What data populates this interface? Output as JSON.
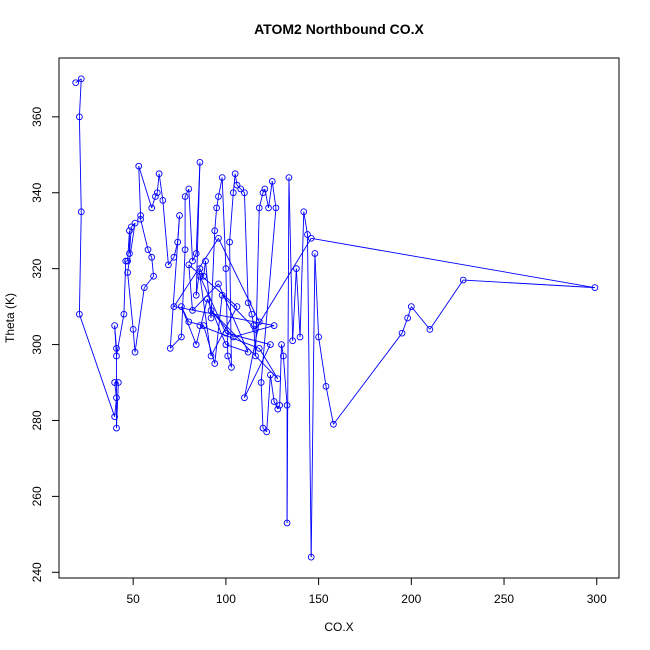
{
  "chart_data": {
    "type": "line",
    "title": "ATOM2 Northbound CO.X",
    "xlabel": "CO.X",
    "ylabel": "Theta (K)",
    "xlim": [
      10,
      312
    ],
    "ylim": [
      238.5,
      375.5
    ],
    "xticks": [
      50,
      100,
      150,
      200,
      250,
      300
    ],
    "yticks": [
      240,
      260,
      280,
      300,
      320,
      340,
      360
    ],
    "grid": false,
    "line_color": "#0000ff",
    "marker": "open-circle",
    "series": [
      {
        "points": [
          [
            19,
            369
          ],
          [
            22,
            370
          ],
          [
            21,
            360
          ],
          [
            22,
            335
          ],
          [
            21,
            308
          ],
          [
            40,
            281
          ],
          [
            41,
            286
          ],
          [
            40,
            290
          ],
          [
            42,
            290
          ],
          [
            41,
            278
          ],
          [
            41,
            299
          ],
          [
            40,
            305
          ],
          [
            41,
            297
          ],
          [
            45,
            308
          ],
          [
            46,
            322
          ],
          [
            47,
            322
          ],
          [
            48,
            330
          ],
          [
            48,
            324
          ],
          [
            49,
            331
          ],
          [
            51,
            332
          ],
          [
            47,
            319
          ],
          [
            50,
            304
          ],
          [
            51,
            298
          ],
          [
            56,
            315
          ],
          [
            61,
            318
          ],
          [
            60,
            323
          ],
          [
            58,
            325
          ],
          [
            54,
            333
          ],
          [
            54,
            334
          ],
          [
            53,
            347
          ],
          [
            60,
            336
          ],
          [
            62,
            339
          ],
          [
            63,
            340
          ],
          [
            64,
            345
          ],
          [
            66,
            338
          ],
          [
            69,
            321
          ],
          [
            72,
            323
          ],
          [
            74,
            327
          ],
          [
            75,
            334
          ],
          [
            70,
            299
          ],
          [
            76,
            302
          ],
          [
            78,
            325
          ],
          [
            78,
            339
          ],
          [
            80,
            341
          ],
          [
            82,
            322
          ],
          [
            84,
            324
          ],
          [
            86,
            348
          ],
          [
            84,
            313
          ],
          [
            86,
            320
          ],
          [
            88,
            318
          ],
          [
            89,
            322
          ],
          [
            92,
            307
          ],
          [
            94,
            330
          ],
          [
            95,
            336
          ],
          [
            96,
            339
          ],
          [
            98,
            344
          ],
          [
            100,
            320
          ],
          [
            101,
            297
          ],
          [
            103,
            294
          ],
          [
            102,
            327
          ],
          [
            104,
            340
          ],
          [
            105,
            345
          ],
          [
            106,
            342
          ],
          [
            108,
            341
          ],
          [
            110,
            340
          ],
          [
            112,
            311
          ],
          [
            114,
            308
          ],
          [
            115,
            305
          ],
          [
            116,
            297
          ],
          [
            118,
            336
          ],
          [
            120,
            340
          ],
          [
            121,
            341
          ],
          [
            123,
            336
          ],
          [
            125,
            343
          ],
          [
            127,
            336
          ],
          [
            119,
            290
          ],
          [
            120,
            278
          ],
          [
            122,
            277
          ],
          [
            124,
            292
          ],
          [
            126,
            285
          ],
          [
            128,
            283
          ],
          [
            129,
            284
          ],
          [
            130,
            300
          ],
          [
            131,
            297
          ],
          [
            133,
            284
          ],
          [
            133,
            253
          ],
          [
            134,
            344
          ],
          [
            136,
            301
          ],
          [
            138,
            320
          ],
          [
            140,
            302
          ],
          [
            142,
            335
          ],
          [
            144,
            329
          ],
          [
            146,
            244
          ],
          [
            148,
            324
          ],
          [
            150,
            302
          ],
          [
            154,
            289
          ],
          [
            158,
            279
          ],
          [
            195,
            303
          ],
          [
            198,
            307
          ],
          [
            200,
            310
          ],
          [
            210,
            304
          ],
          [
            228,
            317
          ],
          [
            299,
            315
          ],
          [
            146,
            328
          ],
          [
            116,
            304
          ],
          [
            98,
            313
          ],
          [
            94,
            295
          ],
          [
            88,
            305
          ],
          [
            80,
            306
          ],
          [
            76,
            310
          ],
          [
            84,
            300
          ],
          [
            90,
            312
          ],
          [
            100,
            300
          ],
          [
            112,
            298
          ],
          [
            96,
            316
          ],
          [
            82,
            309
          ],
          [
            80,
            321
          ],
          [
            106,
            310
          ],
          [
            92,
            297
          ],
          [
            86,
            318
          ],
          [
            100,
            303
          ],
          [
            124,
            300
          ],
          [
            110,
            286
          ],
          [
            118,
            306
          ],
          [
            96,
            328
          ],
          [
            72,
            310
          ],
          [
            126,
            305
          ],
          [
            104,
            302
          ],
          [
            92,
            309
          ],
          [
            128,
            291
          ],
          [
            118,
            299
          ],
          [
            86,
            305
          ]
        ]
      }
    ]
  }
}
